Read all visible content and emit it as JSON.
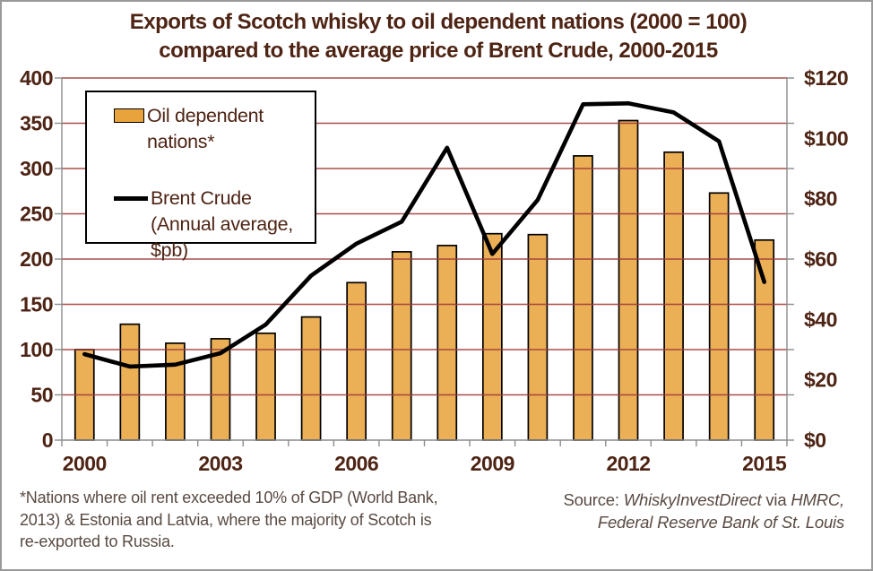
{
  "window": {
    "background": "#ffffff",
    "border_color": "#9a9a9a"
  },
  "title": {
    "line1": "Exports of Scotch whisky to oil dependent nations (2000 = 100)",
    "line2": "compared to the average price of Brent Crude, 2000-2015"
  },
  "legend": {
    "items": [
      {
        "label": "Oil dependent nations*",
        "swatch": "bar-swatch"
      },
      {
        "label": "Brent Crude (Annual average, $pb)",
        "swatch": "line-swatch"
      }
    ]
  },
  "footnote": {
    "lines": [
      "*Nations where oil rent exceeded  10% of GDP (World Bank,",
      "2013) & Estonia and Latvia, where the majority of Scotch is",
      "re-exported  to Russia."
    ]
  },
  "source": {
    "prefix": "Source: ",
    "name1": "WhiskyInvestDirect",
    "mid": " via ",
    "name2": "HMRC,",
    "line2": "Federal Reserve Bank of St. Louis"
  },
  "chart_data": {
    "type": "bar",
    "title": "Exports of Scotch whisky to oil dependent nations (2000 = 100) compared to the average price of Brent Crude, 2000-2015",
    "categories": [
      2000,
      2001,
      2002,
      2003,
      2004,
      2005,
      2006,
      2007,
      2008,
      2009,
      2010,
      2011,
      2012,
      2013,
      2014,
      2015
    ],
    "series": [
      {
        "name": "Oil dependent nations*",
        "type": "bar",
        "axis": "left",
        "color": "#E8A33D",
        "border_color": "#000000",
        "values": [
          100,
          128,
          107,
          112,
          118,
          136,
          174,
          208,
          215,
          228,
          227,
          314,
          353,
          318,
          273,
          221
        ]
      },
      {
        "name": "Brent Crude (Annual average, $pb)",
        "type": "line",
        "axis": "right",
        "color": "#000000",
        "values": [
          28.5,
          24.4,
          25.0,
          28.8,
          38.3,
          54.5,
          65.1,
          72.4,
          96.9,
          61.7,
          79.6,
          111.3,
          111.6,
          108.6,
          99.0,
          52.4
        ]
      }
    ],
    "left_axis": {
      "min": 0,
      "max": 400,
      "step": 50,
      "prefix": ""
    },
    "right_axis": {
      "min": 0,
      "max": 120,
      "step": 20,
      "prefix": "$"
    },
    "x_tick_label_years": [
      2000,
      2003,
      2006,
      2009,
      2012,
      2015
    ],
    "grid": "horizontal",
    "gridline_color": "#9E3A38",
    "axis_color": "#8C8C8C",
    "text_color": "#4E2414",
    "legend_position": "top-left"
  }
}
